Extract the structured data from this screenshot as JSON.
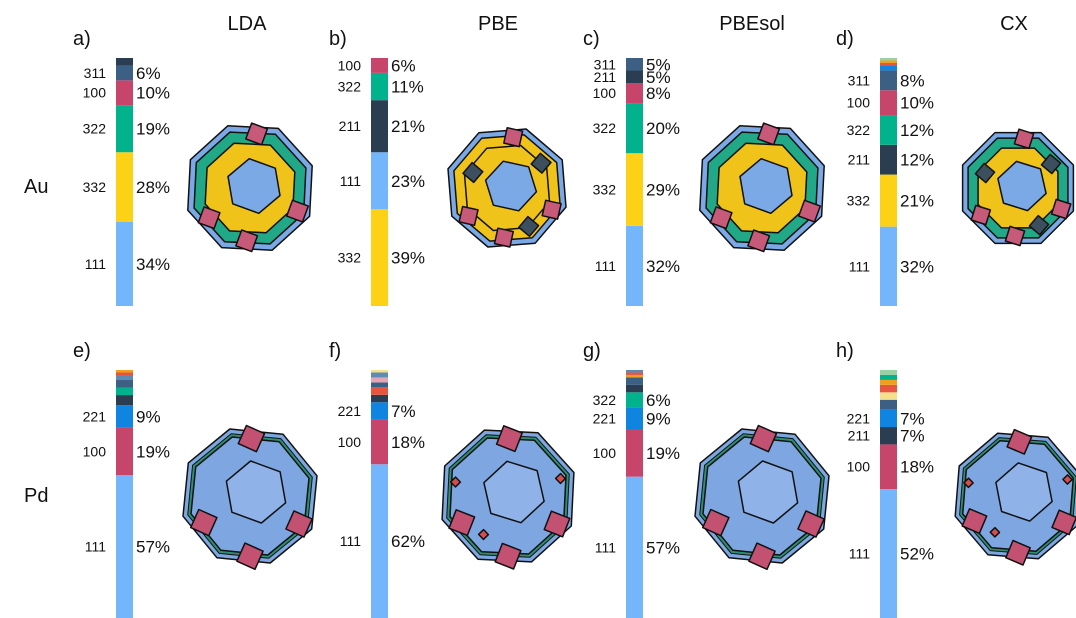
{
  "columns": [
    "LDA",
    "PBE",
    "PBEsol",
    "CX"
  ],
  "rows": [
    "Au",
    "Pd"
  ],
  "colors": {
    "111": "#74b6fb",
    "332": "#fcd116",
    "322": "#00b38c",
    "100": "#c7446a",
    "311": "#3c5f84",
    "211": "#2b3e51",
    "221": "#0f84e0",
    "misc": [
      "#e8553f",
      "#f0a01e",
      "#9ad0a6",
      "#e6a5b6",
      "#f5e08c",
      "#5c8cb3"
    ]
  },
  "shape_colors": {
    "au_face_111": "#7aa9e6",
    "au_face_100": "#c85a79",
    "au_face_332": "#f0c31a",
    "au_face_322": "#21a886",
    "au_face_211": "#3c4f5f",
    "pd_face_111": "#7ea6e0",
    "pd_face_100": "#c35272",
    "pd_face_edge": "#2d8f74",
    "pd_face_corner": "#d44e4e",
    "outline": "#111111"
  },
  "chart_data": [
    {
      "type": "bar",
      "stacked": true,
      "panel": "a)",
      "element": "Au",
      "functional": "LDA",
      "segments": [
        {
          "facet": "111",
          "pct": 34,
          "label": "34%"
        },
        {
          "facet": "332",
          "pct": 28,
          "label": "28%"
        },
        {
          "facet": "322",
          "pct": 19,
          "label": "19%"
        },
        {
          "facet": "100",
          "pct": 10,
          "label": "10%"
        },
        {
          "facet": "311",
          "pct": 6,
          "label": "6%"
        },
        {
          "facet": "211",
          "pct": 3
        }
      ]
    },
    {
      "type": "bar",
      "stacked": true,
      "panel": "b)",
      "element": "Au",
      "functional": "PBE",
      "segments": [
        {
          "facet": "332",
          "pct": 39,
          "label": "39%"
        },
        {
          "facet": "111",
          "pct": 23,
          "label": "23%"
        },
        {
          "facet": "211",
          "pct": 21,
          "label": "21%"
        },
        {
          "facet": "322",
          "pct": 11,
          "label": "11%"
        },
        {
          "facet": "100",
          "pct": 6,
          "label": "6%"
        }
      ]
    },
    {
      "type": "bar",
      "stacked": true,
      "panel": "c)",
      "element": "Au",
      "functional": "PBEsol",
      "segments": [
        {
          "facet": "111",
          "pct": 32,
          "label": "32%"
        },
        {
          "facet": "332",
          "pct": 29,
          "label": "29%"
        },
        {
          "facet": "322",
          "pct": 20,
          "label": "20%"
        },
        {
          "facet": "100",
          "pct": 8,
          "label": "8%"
        },
        {
          "facet": "211",
          "pct": 5,
          "label": "5%"
        },
        {
          "facet": "311",
          "pct": 5,
          "label": "5%"
        }
      ]
    },
    {
      "type": "bar",
      "stacked": true,
      "panel": "d)",
      "element": "Au",
      "functional": "CX",
      "segments": [
        {
          "facet": "111",
          "pct": 32,
          "label": "32%"
        },
        {
          "facet": "332",
          "pct": 21,
          "label": "21%"
        },
        {
          "facet": "211",
          "pct": 12,
          "label": "12%"
        },
        {
          "facet": "322",
          "pct": 12,
          "label": "12%"
        },
        {
          "facet": "100",
          "pct": 10,
          "label": "10%"
        },
        {
          "facet": "311",
          "pct": 8,
          "label": "8%"
        },
        {
          "facet": "221",
          "pct": 2
        },
        {
          "facet": "misc0",
          "pct": 1
        },
        {
          "facet": "misc1",
          "pct": 1
        },
        {
          "facet": "misc2",
          "pct": 1
        }
      ]
    },
    {
      "type": "bar",
      "stacked": true,
      "panel": "e)",
      "element": "Pd",
      "functional": "LDA",
      "segments": [
        {
          "facet": "111",
          "pct": 57,
          "label": "57%"
        },
        {
          "facet": "100",
          "pct": 19,
          "label": "19%"
        },
        {
          "facet": "221",
          "pct": 9,
          "label": "9%"
        },
        {
          "facet": "211",
          "pct": 4
        },
        {
          "facet": "322",
          "pct": 3
        },
        {
          "facet": "311",
          "pct": 3
        },
        {
          "facet": "misc5",
          "pct": 2
        },
        {
          "facet": "misc0",
          "pct": 1
        },
        {
          "facet": "misc1",
          "pct": 1
        }
      ]
    },
    {
      "type": "bar",
      "stacked": true,
      "panel": "f)",
      "element": "Pd",
      "functional": "PBE",
      "segments": [
        {
          "facet": "111",
          "pct": 62,
          "label": "62%"
        },
        {
          "facet": "100",
          "pct": 18,
          "label": "18%"
        },
        {
          "facet": "221",
          "pct": 7,
          "label": "7%"
        },
        {
          "facet": "211",
          "pct": 3
        },
        {
          "facet": "misc0",
          "pct": 3
        },
        {
          "facet": "311",
          "pct": 2
        },
        {
          "facet": "misc3",
          "pct": 2
        },
        {
          "facet": "misc5",
          "pct": 2
        },
        {
          "facet": "misc4",
          "pct": 1
        }
      ]
    },
    {
      "type": "bar",
      "stacked": true,
      "panel": "g)",
      "element": "Pd",
      "functional": "PBEsol",
      "segments": [
        {
          "facet": "111",
          "pct": 57,
          "label": "57%"
        },
        {
          "facet": "100",
          "pct": 19,
          "label": "19%"
        },
        {
          "facet": "221",
          "pct": 9,
          "label": "9%"
        },
        {
          "facet": "322",
          "pct": 6,
          "label": "6%"
        },
        {
          "facet": "211",
          "pct": 3
        },
        {
          "facet": "311",
          "pct": 3
        },
        {
          "facet": "misc1",
          "pct": 1
        },
        {
          "facet": "misc0",
          "pct": 1
        },
        {
          "facet": "misc5",
          "pct": 1
        }
      ]
    },
    {
      "type": "bar",
      "stacked": true,
      "panel": "h)",
      "element": "Pd",
      "functional": "CX",
      "segments": [
        {
          "facet": "111",
          "pct": 52,
          "label": "52%"
        },
        {
          "facet": "100",
          "pct": 18,
          "label": "18%"
        },
        {
          "facet": "211",
          "pct": 7,
          "label": "7%"
        },
        {
          "facet": "221",
          "pct": 7,
          "label": "7%"
        },
        {
          "facet": "311",
          "pct": 4
        },
        {
          "facet": "misc4",
          "pct": 3
        },
        {
          "facet": "misc0",
          "pct": 3
        },
        {
          "facet": "misc1",
          "pct": 2
        },
        {
          "facet": "322",
          "pct": 2
        },
        {
          "facet": "misc2",
          "pct": 2
        }
      ]
    }
  ]
}
